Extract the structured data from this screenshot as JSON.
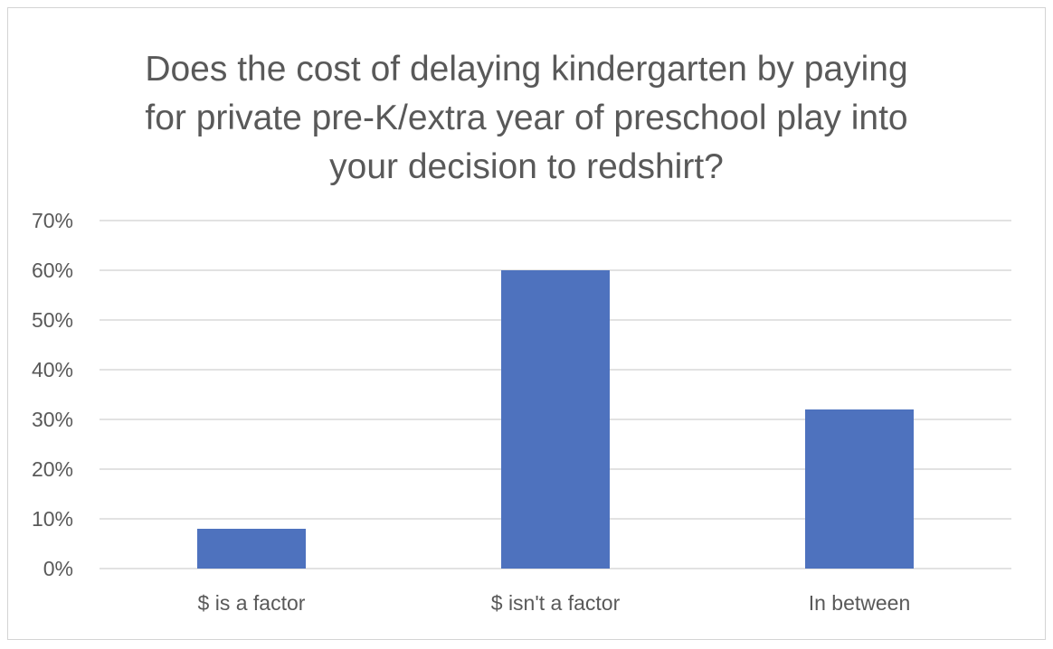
{
  "chart_data": {
    "type": "bar",
    "title_lines": [
      "Does the cost of delaying kindergarten by paying",
      "for private pre-K/extra year of preschool play into",
      "your decision to redshirt?"
    ],
    "categories": [
      "$ is a factor",
      "$ isn't a factor",
      "In between"
    ],
    "values": [
      8,
      60,
      32
    ],
    "y_ticks": [
      0,
      10,
      20,
      30,
      40,
      50,
      60,
      70
    ],
    "y_tick_suffix": "%",
    "ylim": [
      0,
      70
    ],
    "xlabel": "",
    "ylabel": "",
    "grid": true,
    "legend": "none",
    "bar_color": "#4e72be",
    "grid_color": "#d9d9d9",
    "text_color": "#595959"
  }
}
